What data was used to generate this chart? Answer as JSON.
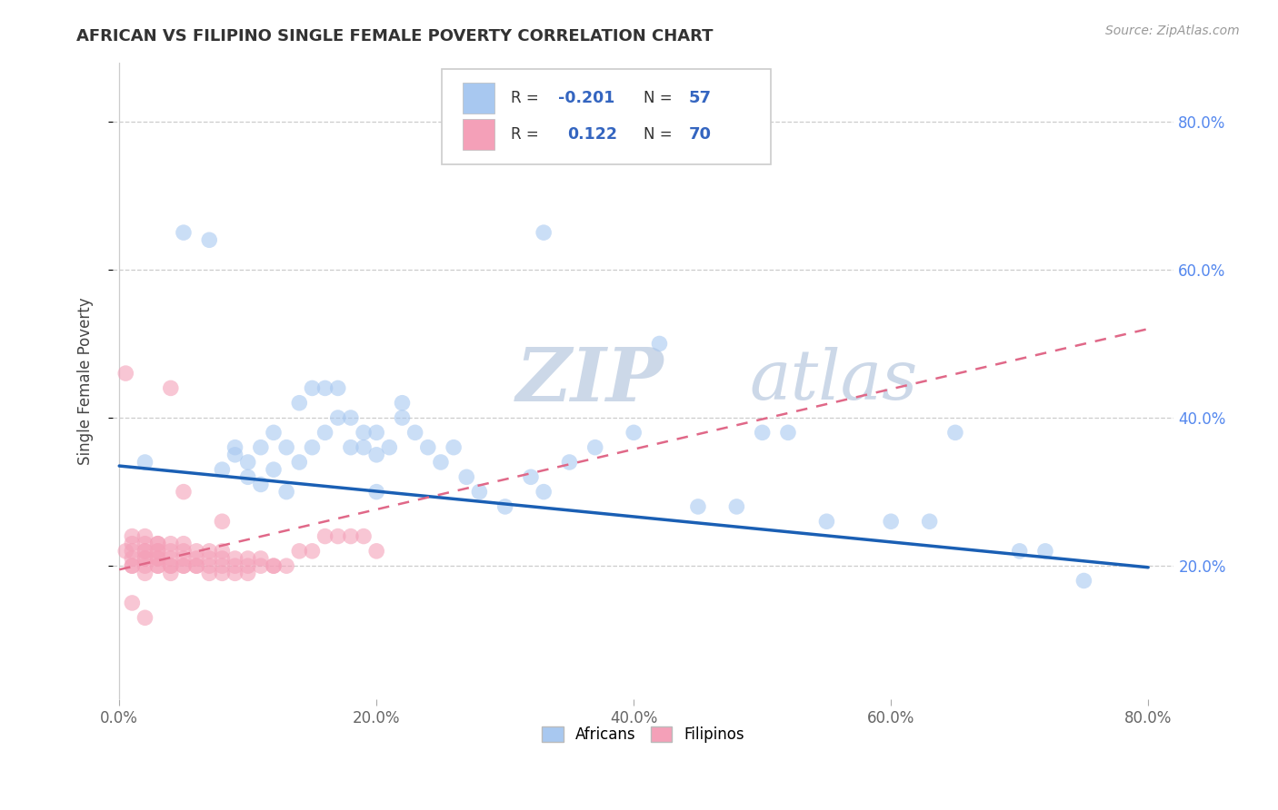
{
  "title": "AFRICAN VS FILIPINO SINGLE FEMALE POVERTY CORRELATION CHART",
  "source": "Source: ZipAtlas.com",
  "ylabel": "Single Female Poverty",
  "xlim": [
    -0.005,
    0.82
  ],
  "ylim": [
    0.02,
    0.88
  ],
  "xtick_vals": [
    0.0,
    0.2,
    0.4,
    0.6,
    0.8
  ],
  "ytick_vals": [
    0.2,
    0.4,
    0.6,
    0.8
  ],
  "xticklabels": [
    "0.0%",
    "20.0%",
    "40.0%",
    "60.0%",
    "80.0%"
  ],
  "yticklabels": [
    "20.0%",
    "40.0%",
    "60.0%",
    "80.0%"
  ],
  "african_color": "#a8c8f0",
  "filipino_color": "#f4a0b8",
  "african_line_color": "#1a5fb4",
  "filipino_line_color": "#e06888",
  "watermark_text": "ZIPatlas",
  "watermark_color": "#ccd8e8",
  "legend_color": "#3465c0",
  "legend_label_color": "#333333",
  "africans_x": [
    0.02,
    0.05,
    0.07,
    0.08,
    0.09,
    0.09,
    0.1,
    0.1,
    0.11,
    0.11,
    0.12,
    0.12,
    0.13,
    0.13,
    0.14,
    0.14,
    0.15,
    0.15,
    0.16,
    0.16,
    0.17,
    0.17,
    0.18,
    0.18,
    0.19,
    0.19,
    0.2,
    0.2,
    0.21,
    0.22,
    0.22,
    0.23,
    0.24,
    0.25,
    0.26,
    0.27,
    0.28,
    0.3,
    0.32,
    0.33,
    0.35,
    0.37,
    0.4,
    0.42,
    0.45,
    0.48,
    0.5,
    0.52,
    0.55,
    0.6,
    0.63,
    0.65,
    0.7,
    0.72,
    0.75,
    0.2,
    0.33
  ],
  "africans_y": [
    0.34,
    0.65,
    0.64,
    0.33,
    0.35,
    0.36,
    0.32,
    0.34,
    0.31,
    0.36,
    0.33,
    0.38,
    0.3,
    0.36,
    0.34,
    0.42,
    0.36,
    0.44,
    0.38,
    0.44,
    0.4,
    0.44,
    0.36,
    0.4,
    0.38,
    0.36,
    0.35,
    0.38,
    0.36,
    0.4,
    0.42,
    0.38,
    0.36,
    0.34,
    0.36,
    0.32,
    0.3,
    0.28,
    0.32,
    0.65,
    0.34,
    0.36,
    0.38,
    0.5,
    0.28,
    0.28,
    0.38,
    0.38,
    0.26,
    0.26,
    0.26,
    0.38,
    0.22,
    0.22,
    0.18,
    0.3,
    0.3
  ],
  "filipinos_x": [
    0.005,
    0.005,
    0.01,
    0.01,
    0.01,
    0.01,
    0.01,
    0.01,
    0.02,
    0.02,
    0.02,
    0.02,
    0.02,
    0.02,
    0.02,
    0.02,
    0.03,
    0.03,
    0.03,
    0.03,
    0.03,
    0.03,
    0.03,
    0.03,
    0.04,
    0.04,
    0.04,
    0.04,
    0.04,
    0.04,
    0.05,
    0.05,
    0.05,
    0.05,
    0.05,
    0.06,
    0.06,
    0.06,
    0.06,
    0.07,
    0.07,
    0.07,
    0.07,
    0.08,
    0.08,
    0.08,
    0.08,
    0.09,
    0.09,
    0.09,
    0.1,
    0.1,
    0.1,
    0.11,
    0.11,
    0.12,
    0.12,
    0.13,
    0.14,
    0.15,
    0.16,
    0.17,
    0.18,
    0.19,
    0.2,
    0.04,
    0.05,
    0.08,
    0.01,
    0.02
  ],
  "filipinos_y": [
    0.22,
    0.46,
    0.2,
    0.22,
    0.24,
    0.2,
    0.23,
    0.21,
    0.19,
    0.21,
    0.22,
    0.23,
    0.2,
    0.24,
    0.21,
    0.22,
    0.2,
    0.21,
    0.22,
    0.23,
    0.2,
    0.21,
    0.22,
    0.23,
    0.19,
    0.2,
    0.21,
    0.22,
    0.23,
    0.2,
    0.2,
    0.21,
    0.22,
    0.23,
    0.2,
    0.2,
    0.21,
    0.22,
    0.2,
    0.2,
    0.21,
    0.22,
    0.19,
    0.2,
    0.21,
    0.22,
    0.19,
    0.2,
    0.21,
    0.19,
    0.2,
    0.21,
    0.19,
    0.2,
    0.21,
    0.2,
    0.2,
    0.2,
    0.22,
    0.22,
    0.24,
    0.24,
    0.24,
    0.24,
    0.22,
    0.44,
    0.3,
    0.26,
    0.15,
    0.13
  ],
  "african_line_x0": 0.0,
  "african_line_x1": 0.8,
  "african_line_y0": 0.335,
  "african_line_y1": 0.198,
  "filipino_line_x0": 0.0,
  "filipino_line_x1": 0.8,
  "filipino_line_y0": 0.195,
  "filipino_line_y1": 0.52
}
